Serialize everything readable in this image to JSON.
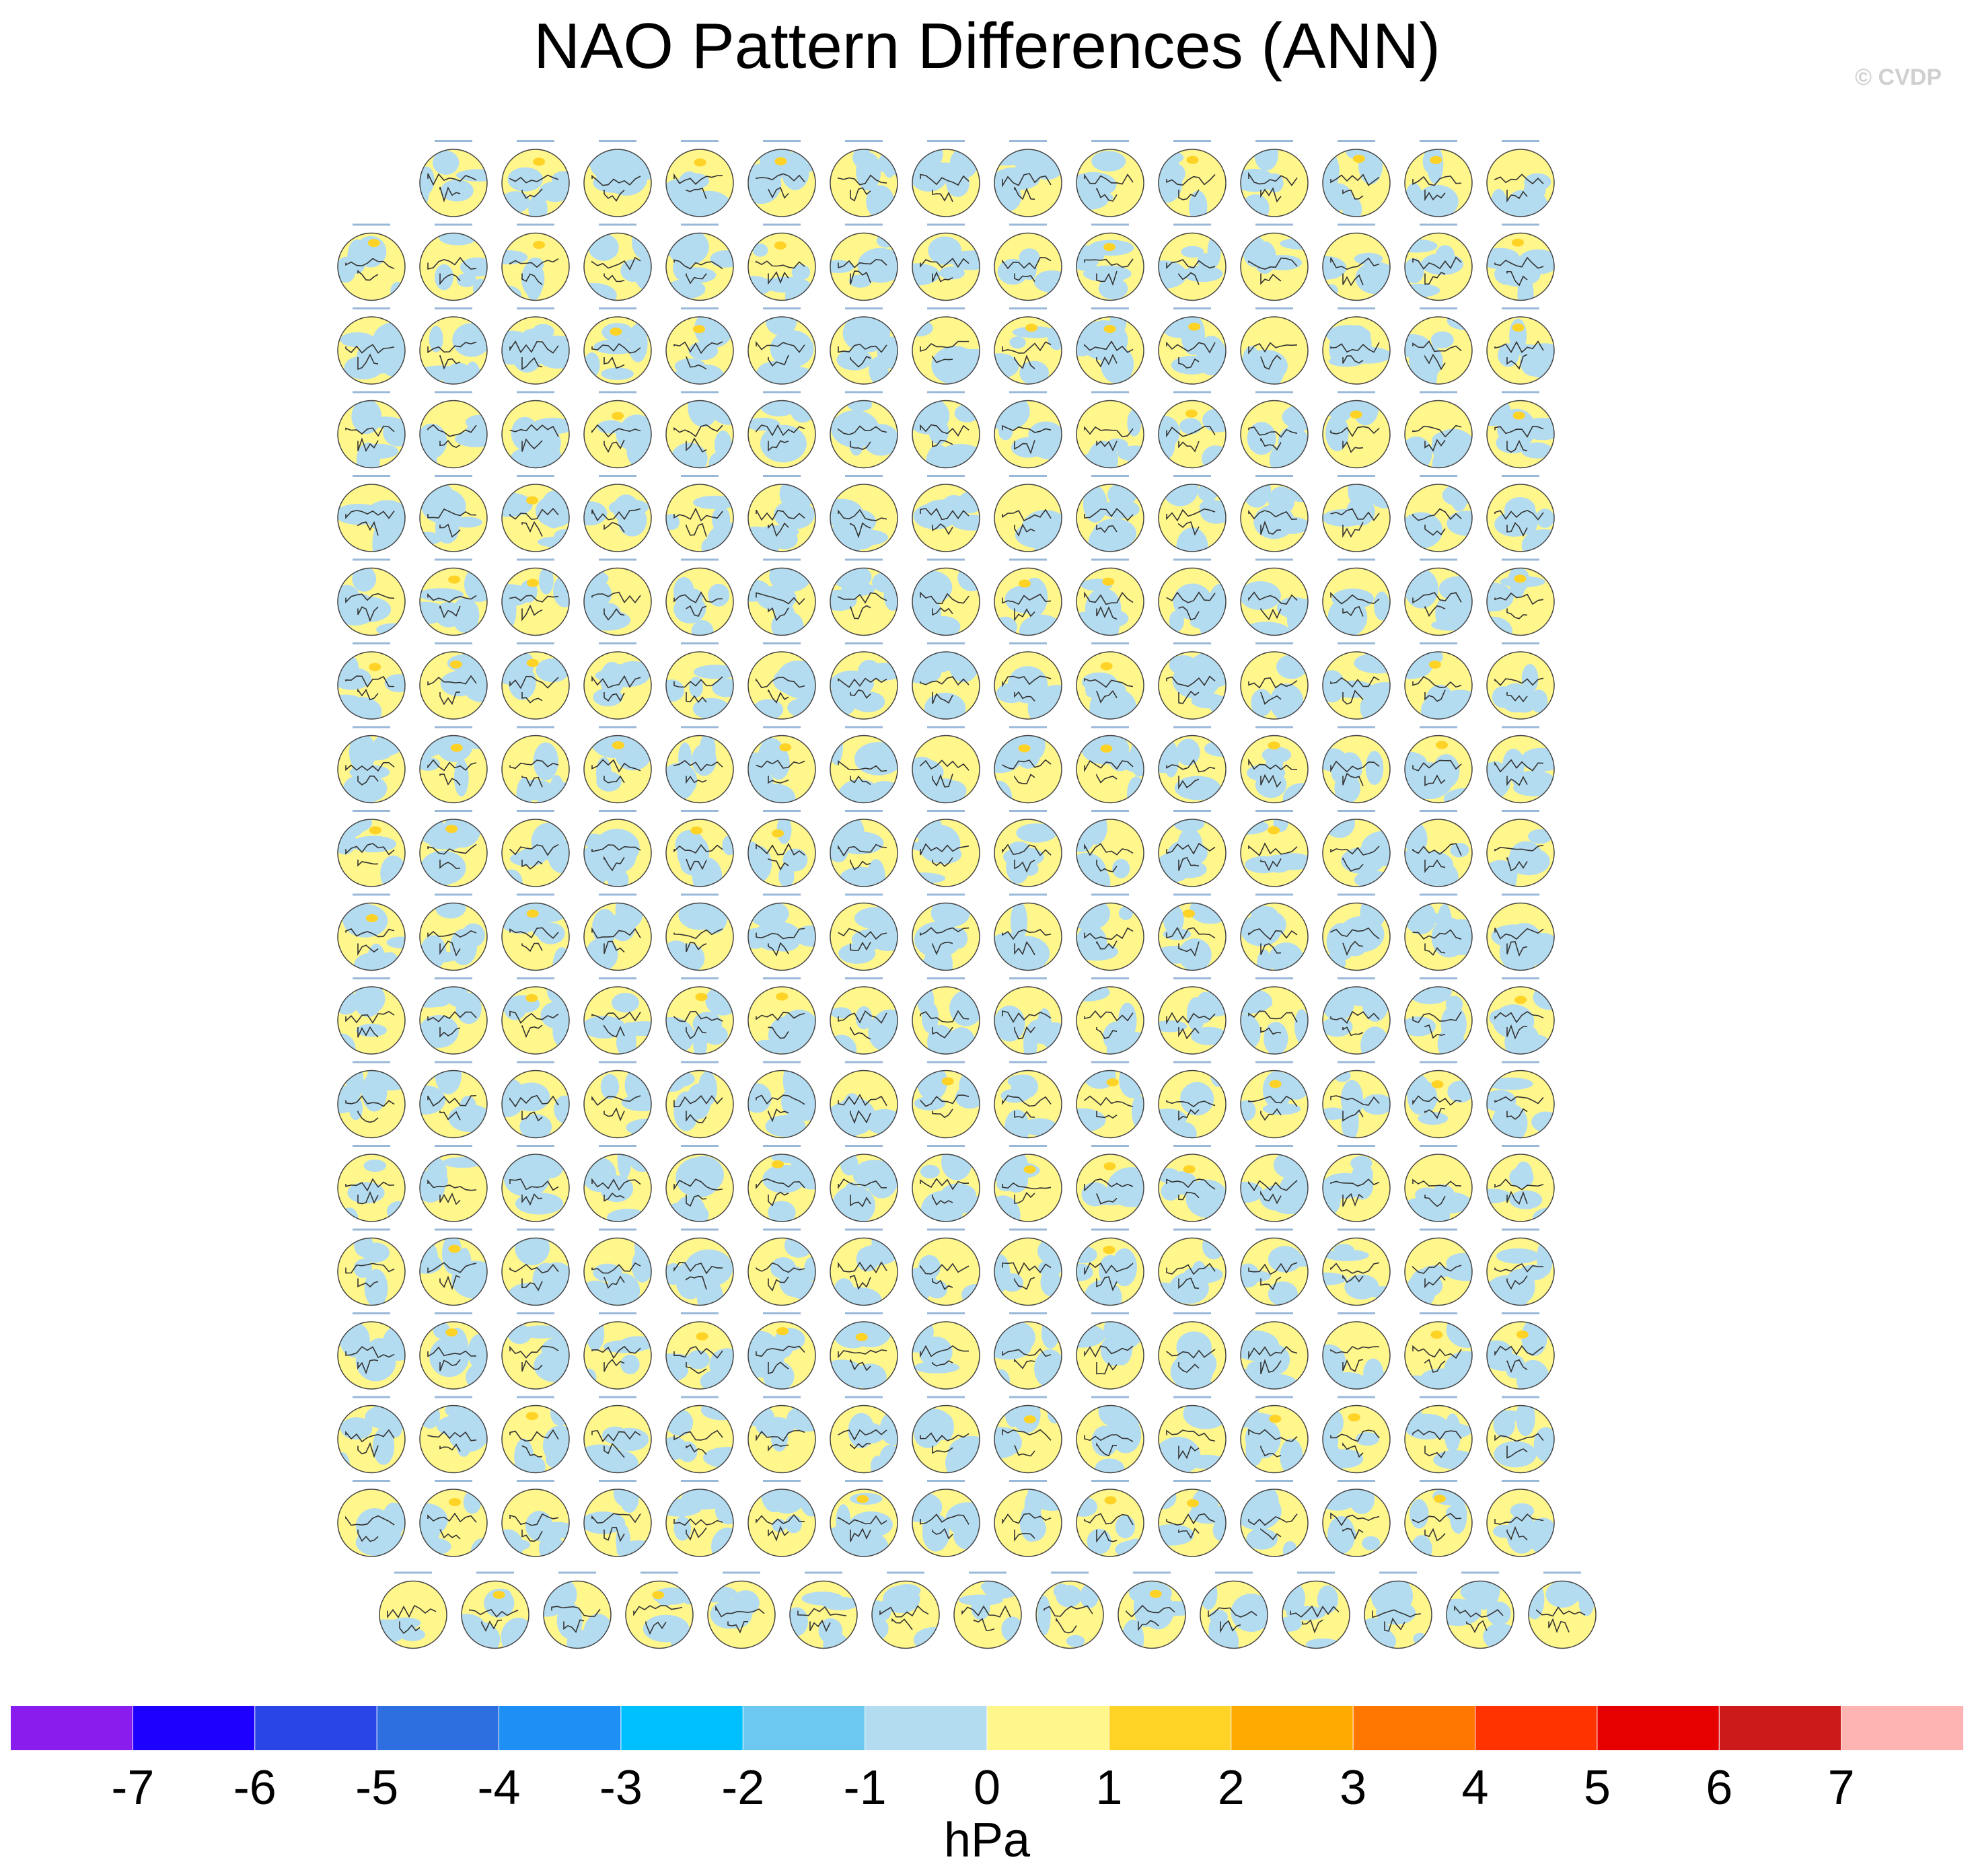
{
  "title": "NAO Pattern Differences (ANN)",
  "watermark": "© CVDP",
  "chart_data": {
    "type": "heatmap",
    "title": "NAO Pattern Differences (ANN)",
    "description_type": "grid of polar-stereographic NH map panels",
    "panel_rows": [
      14,
      15,
      15,
      15,
      15,
      15,
      15,
      15,
      15,
      15,
      15,
      15,
      15,
      15,
      15,
      15,
      15,
      15
    ],
    "colorbar": {
      "unit": "hPa",
      "ticks": [
        "-7",
        "-6",
        "-5",
        "-4",
        "-3",
        "-2",
        "-1",
        "0",
        "1",
        "2",
        "3",
        "4",
        "5",
        "6",
        "7"
      ],
      "colors": [
        "#8a1cee",
        "#1e00ff",
        "#2a45e6",
        "#2d6fe0",
        "#1e8ff5",
        "#00bfff",
        "#6cc8f0",
        "#b4dcf0",
        "#fff68c",
        "#ffd226",
        "#ffaa00",
        "#ff7700",
        "#ff3300",
        "#e60000",
        "#cc1a1a",
        "#ffb4b4"
      ]
    }
  }
}
